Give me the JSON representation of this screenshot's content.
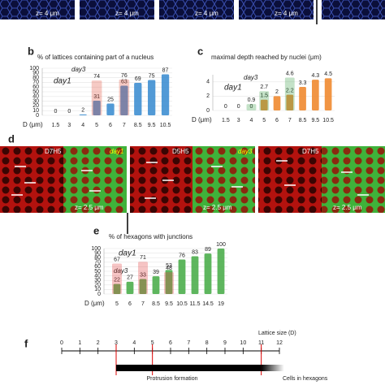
{
  "panel_a": {
    "depth_labels": [
      "z= 4 μm",
      "z= 4 μm",
      "z= 4 μm",
      "z= 4 μm"
    ]
  },
  "chart_data": [
    {
      "type": "bar",
      "label": "b",
      "title": "% of lattices containing part of a nucleus",
      "x_label": "D (μm)",
      "categories": [
        "1.5",
        "3",
        "4",
        "5",
        "6",
        "7",
        "8.5",
        "9.5",
        "10.5"
      ],
      "series": [
        {
          "name": "day1",
          "color": "#3f8fd2",
          "values": [
            0,
            0,
            2,
            31,
            25,
            63,
            69,
            75,
            87
          ]
        },
        {
          "name": "day3",
          "color": "#e0503a",
          "values": [
            null,
            null,
            null,
            74,
            null,
            76,
            null,
            null,
            null
          ]
        }
      ],
      "ylim": [
        0,
        100
      ],
      "yticks": [
        0,
        10,
        20,
        30,
        40,
        50,
        60,
        70,
        80,
        90,
        100
      ]
    },
    {
      "type": "bar",
      "label": "c",
      "title": "maximal depth reached by nuclei (μm)",
      "x_label": "D (μm)",
      "categories": [
        "1.5",
        "3",
        "4",
        "5",
        "6",
        "7",
        "8.5",
        "9.5",
        "10.5"
      ],
      "series": [
        {
          "name": "day1",
          "color": "#f08a30",
          "values": [
            0,
            0,
            0,
            1.5,
            2,
            2.2,
            3.3,
            4.3,
            4.5
          ]
        },
        {
          "name": "day3",
          "color": "#3aa04a",
          "values": [
            null,
            null,
            0.9,
            2.7,
            null,
            4.6,
            null,
            null,
            null
          ]
        }
      ],
      "ylim": [
        0,
        5
      ],
      "yticks": [
        0,
        2,
        4
      ]
    },
    {
      "type": "bar",
      "label": "e",
      "title": "% of hexagons with junctions",
      "x_label": "D (μm)",
      "categories": [
        "5",
        "6",
        "7",
        "8.5",
        "9.5",
        "10.5",
        "11.5",
        "14.5",
        "19"
      ],
      "series": [
        {
          "name": "day1",
          "color": "#4cae4c",
          "values": [
            22,
            27,
            33,
            39,
            53,
            76,
            83,
            89,
            100
          ]
        },
        {
          "name": "day3",
          "color": "#e03a3a",
          "values": [
            67,
            null,
            71,
            null,
            48,
            null,
            null,
            null,
            null
          ]
        }
      ],
      "ylim": [
        0,
        100
      ],
      "yticks": [
        0,
        10,
        20,
        30,
        40,
        50,
        60,
        70,
        80,
        90,
        100
      ]
    }
  ],
  "panel_d": {
    "label": "d",
    "image_labels": [
      "D7H5",
      "day1",
      "D5H5",
      "day3",
      "D7H5"
    ],
    "depth_labels": [
      "z= 2.5 μm",
      "z= 2.5 μm",
      "z= 2.5 μm"
    ]
  },
  "panel_f": {
    "label": "f",
    "axis_title": "Lattice size (D)",
    "ticks": [
      0,
      1,
      2,
      3,
      4,
      5,
      6,
      7,
      8,
      9,
      10,
      11,
      12
    ],
    "markers": [
      3,
      5,
      11
    ],
    "span_labels": [
      "Protrusion formation",
      "Cells in hexagons"
    ]
  }
}
